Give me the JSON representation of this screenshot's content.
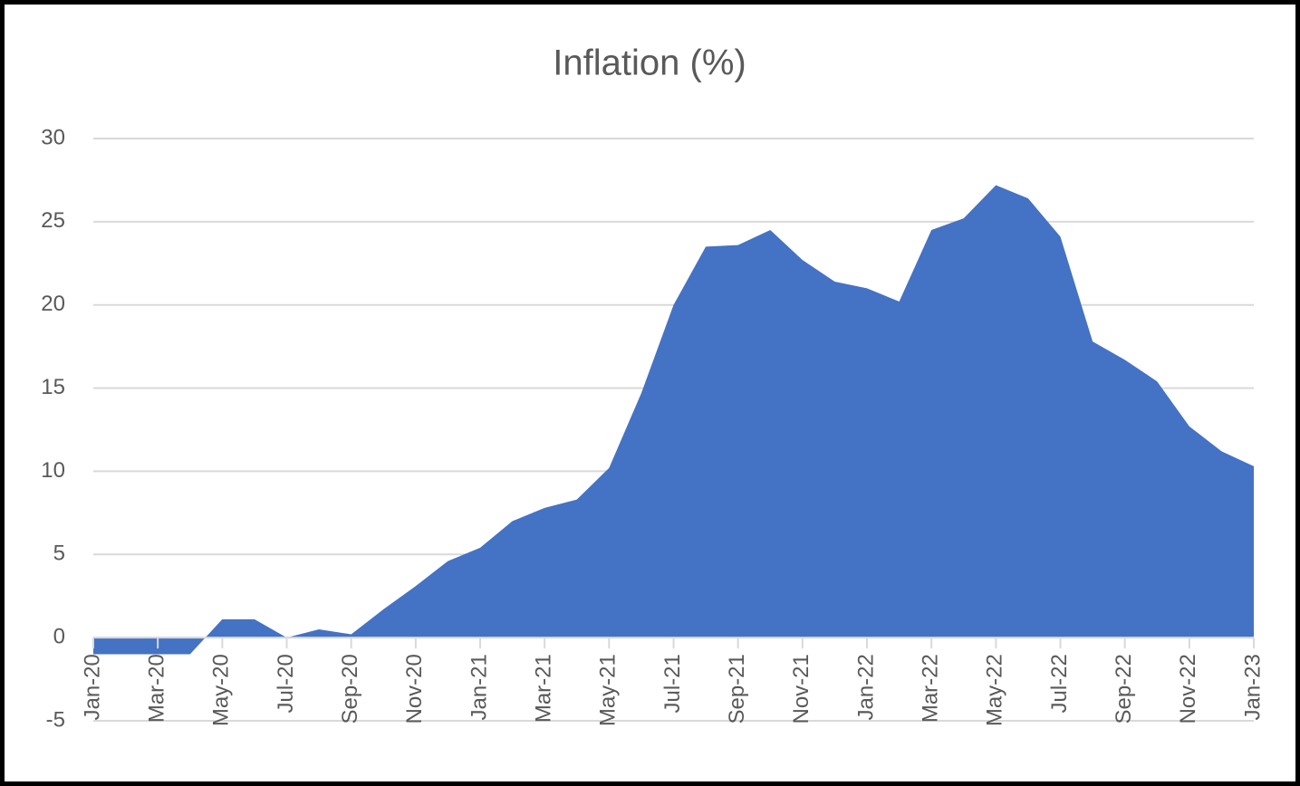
{
  "chart_data": {
    "type": "area",
    "title": "Inflation (%)",
    "categories": [
      "Jan-20",
      null,
      "Mar-20",
      null,
      "May-20",
      null,
      "Jul-20",
      null,
      "Sep-20",
      null,
      "Nov-20",
      null,
      "Jan-21",
      null,
      "Mar-21",
      null,
      "May-21",
      null,
      "Jul-21",
      null,
      "Sep-21",
      null,
      "Nov-21",
      null,
      "Jan-22",
      null,
      "Mar-22",
      null,
      "May-22",
      null,
      "Jul-22",
      null,
      "Sep-22",
      null,
      "Nov-22",
      null,
      "Jan-23"
    ],
    "values": [
      -1,
      -1,
      -1,
      -1,
      1.1,
      1.1,
      0,
      0.5,
      0.2,
      1.7,
      3.1,
      4.6,
      5.4,
      7.0,
      7.8,
      8.3,
      10.2,
      14.7,
      20.0,
      23.5,
      23.6,
      24.5,
      22.7,
      21.4,
      21.0,
      20.2,
      24.5,
      25.2,
      27.2,
      26.4,
      24.1,
      17.8,
      16.7,
      15.4,
      12.7,
      11.2,
      10.3
    ],
    "color": "#4472c4",
    "ylim": [
      -5,
      30
    ],
    "yticks": [
      -5,
      0,
      5,
      10,
      15,
      20,
      25,
      30
    ],
    "grid": true
  }
}
